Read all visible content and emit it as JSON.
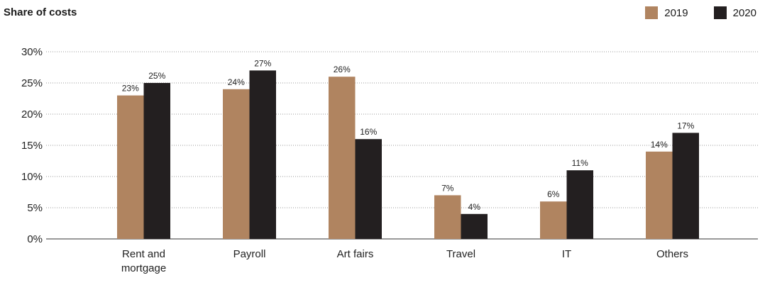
{
  "chart_data": {
    "type": "bar",
    "title": "Share of costs",
    "categories": [
      [
        "Rent and",
        "mortgage"
      ],
      [
        "Payroll"
      ],
      [
        "Art fairs"
      ],
      [
        "Travel"
      ],
      [
        "IT"
      ],
      [
        "Others"
      ]
    ],
    "series": [
      {
        "name": "2019",
        "color": "#b08460",
        "values": [
          23,
          24,
          26,
          7,
          6,
          14
        ],
        "labels": [
          "23%",
          "24%",
          "26%",
          "7%",
          "6%",
          "14%"
        ]
      },
      {
        "name": "2020",
        "color": "#231f20",
        "values": [
          25,
          27,
          16,
          4,
          11,
          17
        ],
        "labels": [
          "25%",
          "27%",
          "16%",
          "4%",
          "11%",
          "17%"
        ]
      }
    ],
    "ylim": [
      0,
      30
    ],
    "yticks": [
      "0%",
      "5%",
      "10%",
      "15%",
      "20%",
      "25%",
      "30%"
    ],
    "ytick_values": [
      0,
      5,
      10,
      15,
      20,
      25,
      30
    ],
    "grid": true,
    "legend_position": "top-right"
  }
}
